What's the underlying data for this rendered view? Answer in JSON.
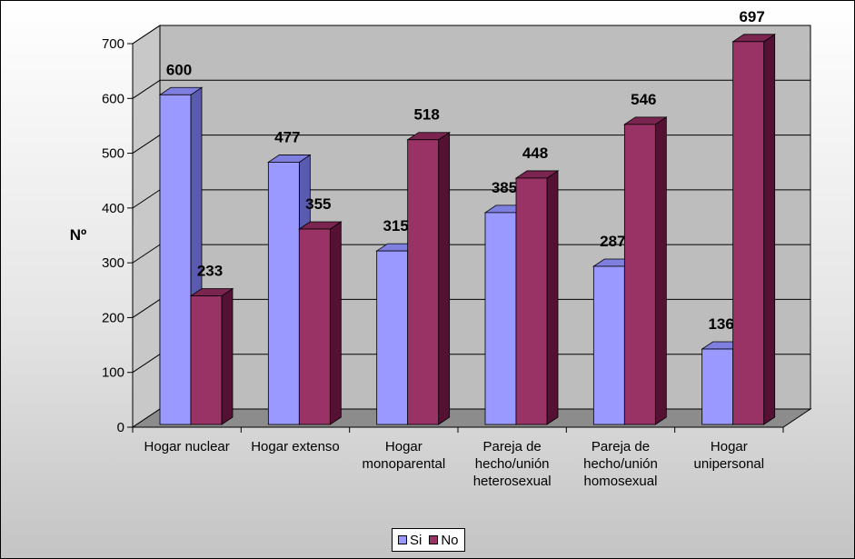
{
  "chart_data": {
    "type": "bar",
    "ylabel": "Nº",
    "xlabel": "",
    "ylim": [
      0,
      700
    ],
    "yticks": [
      0,
      100,
      200,
      300,
      400,
      500,
      600,
      700
    ],
    "grid": true,
    "legend_position": "bottom",
    "categories": [
      [
        "Hogar nuclear"
      ],
      [
        "Hogar extenso"
      ],
      [
        "Hogar",
        "monoparental"
      ],
      [
        "Pareja de",
        "hecho/unión",
        "heterosexual"
      ],
      [
        "Pareja de",
        "hecho/unión",
        "homosexual"
      ],
      [
        "Hogar",
        "unipersonal"
      ]
    ],
    "series": [
      {
        "name": "Si",
        "values": [
          600,
          477,
          315,
          385,
          287,
          136
        ],
        "color": "#9999ff",
        "side_color": "#5a5ab0",
        "top_color": "#7f7fe0"
      },
      {
        "name": "No",
        "values": [
          233,
          355,
          518,
          448,
          546,
          697
        ],
        "color": "#993366",
        "side_color": "#551133",
        "top_color": "#7a2450"
      }
    ]
  }
}
